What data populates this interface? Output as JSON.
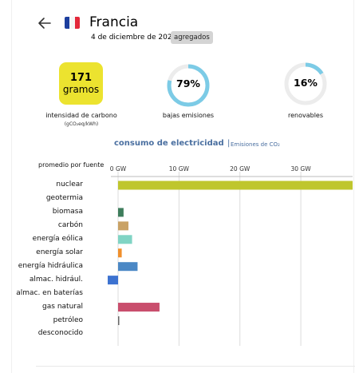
{
  "header": {
    "back_icon": "arrow-left-icon",
    "flag_icon": "france-flag-icon",
    "country": "Francia",
    "date": "4 de diciembre de 2022",
    "badge": "agregados"
  },
  "metrics": {
    "carbon_intensity": {
      "value": "171",
      "unit": "gramos",
      "label": "intensidad de carbono",
      "sublabel": "(gCO₂eq/kWh)",
      "color": "#ece32f"
    },
    "low_emissions": {
      "value": "79%",
      "percent": 79,
      "label": "bajas emisiones",
      "color": "#7ccbe6"
    },
    "renewables": {
      "value": "16%",
      "percent": 16,
      "label": "renovables",
      "color": "#7ccbe6"
    }
  },
  "chart_header": {
    "title": "consumo de electricidad",
    "separator": "|",
    "alt_link": "Emisiones de CO₂"
  },
  "chart_data": {
    "type": "bar",
    "orientation": "horizontal",
    "ylabel": "promedio por fuente",
    "xlim": [
      0,
      38.5
    ],
    "xticks": [
      0,
      10,
      20,
      30
    ],
    "xtick_labels": [
      "0 GW",
      "10 GW",
      "20 GW",
      "30 GW"
    ],
    "grid": true,
    "categories": [
      "nuclear",
      "geotermia",
      "biomasa",
      "carbón",
      "energía eólica",
      "energía solar",
      "energía hidráulica",
      "almac. hidrául.",
      "almac. en baterías",
      "gas natural",
      "petróleo",
      "desconocido"
    ],
    "values": [
      38.5,
      0,
      0.9,
      1.7,
      2.3,
      0.6,
      3.2,
      -1.7,
      0,
      6.8,
      0.1,
      0
    ],
    "colors": [
      "#bfc62d",
      "#b0b0b0",
      "#3e7d5c",
      "#c9a265",
      "#80d4c4",
      "#f08f2c",
      "#4b88c5",
      "#3c72d0",
      "#b0b0b0",
      "#c94f6d",
      "#666666",
      "#b0b0b0"
    ]
  }
}
